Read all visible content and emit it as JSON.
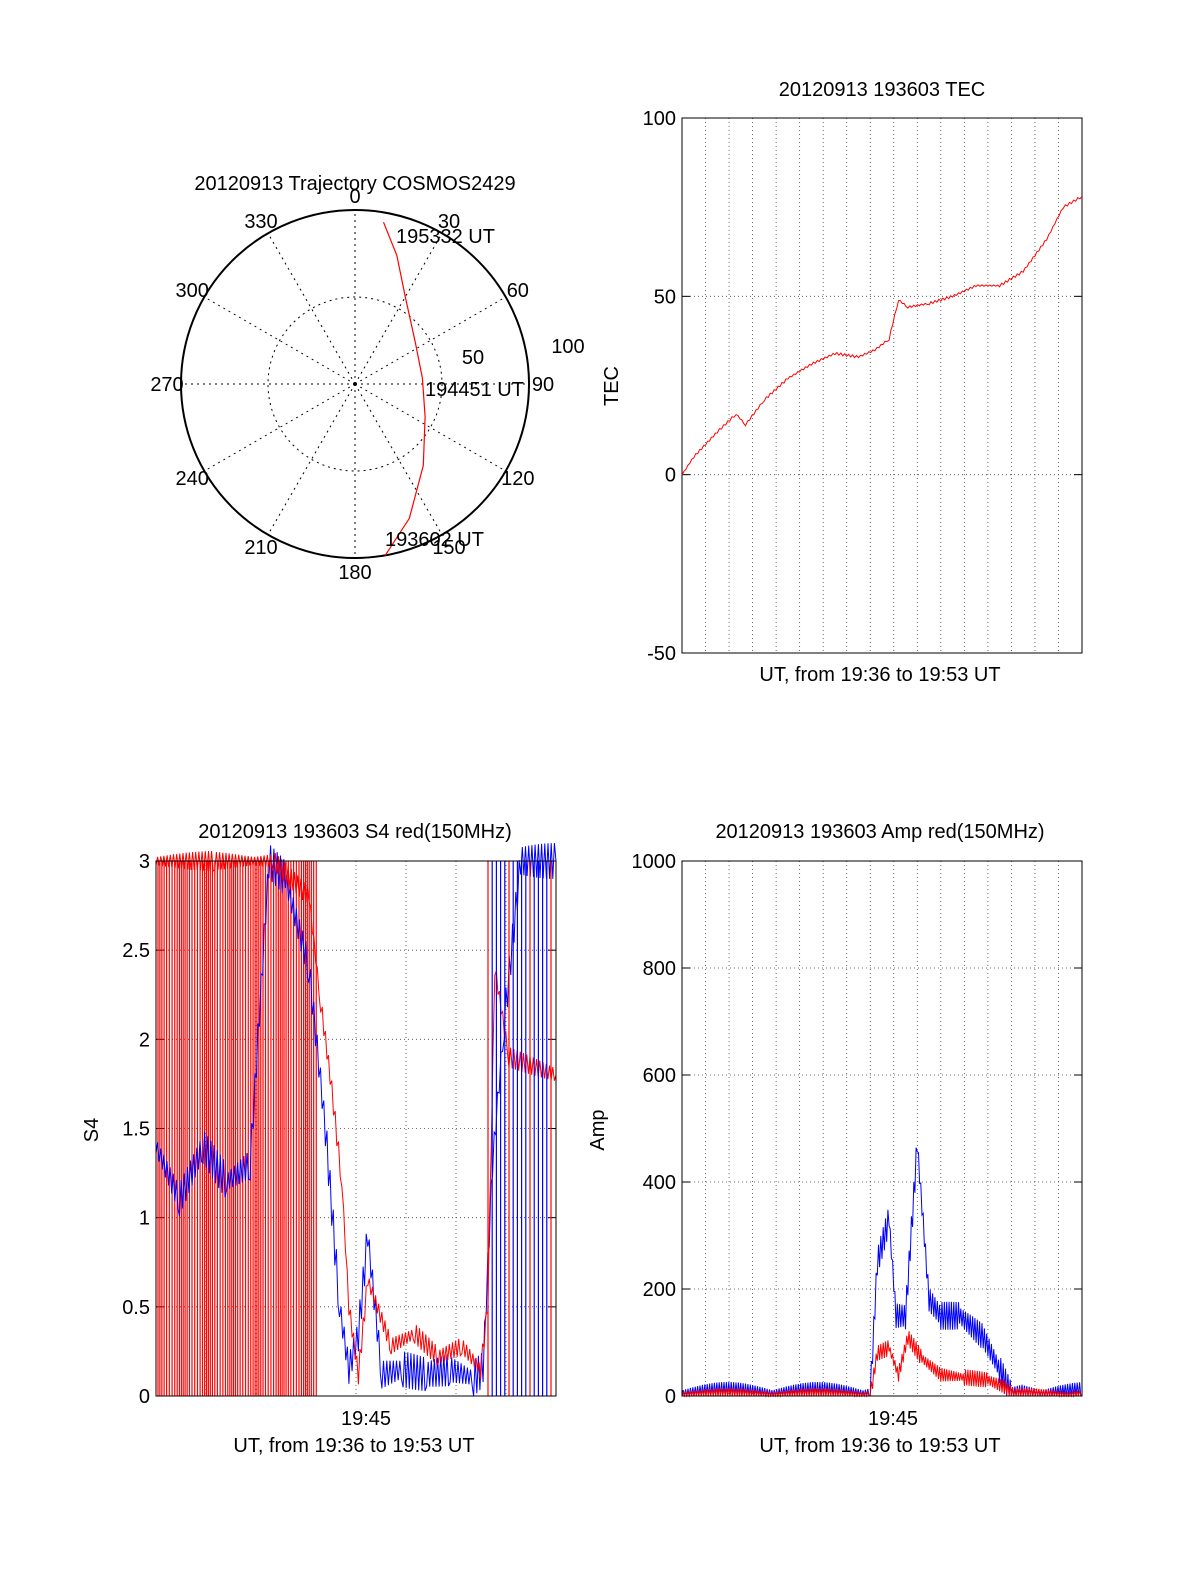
{
  "colors": {
    "red": "#ff0000",
    "blue": "#0000ff",
    "axis": "#000000",
    "grid": "#555555"
  },
  "chart_data": [
    {
      "id": "polar",
      "type": "scatter",
      "title": "20120913 Trajectory COSMOS2429",
      "azimuth_labels": [
        "0",
        "30",
        "60",
        "90",
        "120",
        "150",
        "180",
        "210",
        "240",
        "270",
        "300",
        "330"
      ],
      "radius_labels": [
        "50",
        "100"
      ],
      "annotations": [
        {
          "text": "195332 UT",
          "azimuth": 10,
          "zenith": 85
        },
        {
          "text": "194451 UT",
          "azimuth": 90,
          "zenith": 0
        },
        {
          "text": "193602 UT",
          "azimuth": 170,
          "zenith": 90
        }
      ],
      "trajectory": [
        [
          10,
          85
        ],
        [
          18,
          70
        ],
        [
          30,
          52
        ],
        [
          55,
          38
        ],
        [
          85,
          35
        ],
        [
          115,
          40
        ],
        [
          140,
          55
        ],
        [
          158,
          75
        ],
        [
          170,
          90
        ]
      ],
      "series_color": "#ff0000"
    },
    {
      "id": "tec",
      "type": "line",
      "title": "20120913 193603 TEC",
      "xlabel": "UT, from 19:36 to 19:53 UT",
      "ylabel": "TEC",
      "xlim": [
        0,
        17
      ],
      "ylim": [
        -50,
        100
      ],
      "yticks": [
        "100",
        "50",
        "0",
        "-50"
      ],
      "series": [
        {
          "color": "#ff0000",
          "x": [
            0,
            0.5,
            1.5,
            2.3,
            2.7,
            3.5,
            4.5,
            5.5,
            6.5,
            7.5,
            8.2,
            8.8,
            9.2,
            9.6,
            10.5,
            11.5,
            12.5,
            13.5,
            14.5,
            15.5,
            16.2,
            17
          ],
          "y": [
            0,
            5,
            12,
            17,
            14,
            21,
            27,
            31,
            34,
            33,
            35,
            38,
            49,
            47,
            48,
            50,
            53,
            53,
            57,
            66,
            75,
            78
          ]
        }
      ]
    },
    {
      "id": "s4",
      "type": "line",
      "title": "20120913 193603 S4 red(150MHz)",
      "xlabel": "UT, from 19:36 to 19:53 UT",
      "ylabel": "S4",
      "xlim": [
        0,
        17
      ],
      "ylim": [
        0,
        3
      ],
      "xticks": [
        "19:45"
      ],
      "yticks": [
        "3",
        "2.5",
        "2",
        "1.5",
        "1",
        "0.5",
        "0"
      ],
      "series": [
        {
          "name": "red",
          "color": "#ff0000",
          "x": [
            0,
            2.5,
            5,
            6.5,
            7.0,
            7.4,
            7.9,
            8.2,
            8.6,
            9.0,
            10,
            11,
            12,
            13,
            13.8,
            14.1,
            14.4,
            15,
            17
          ],
          "y": [
            3,
            3,
            3,
            2.8,
            2.2,
            1.8,
            1.2,
            0.5,
            0.12,
            0.65,
            0.28,
            0.35,
            0.22,
            0.28,
            0.15,
            0.5,
            2.4,
            1.9,
            1.8
          ]
        },
        {
          "name": "blue",
          "color": "#0000ff",
          "x": [
            0,
            1,
            2,
            3,
            4,
            4.8,
            5.5,
            6.5,
            7.2,
            7.8,
            8.2,
            8.6,
            9.0,
            9.6,
            10.5,
            11.5,
            12.5,
            13.5,
            13.9,
            14.3,
            14.8,
            15.5,
            17
          ],
          "y": [
            1.4,
            1.1,
            1.4,
            1.2,
            1.3,
            3,
            2.9,
            2.4,
            1.5,
            0.5,
            0.15,
            0.35,
            0.9,
            0.12,
            0.15,
            0.12,
            0.15,
            0.1,
            0.15,
            1.3,
            2.1,
            3,
            3
          ]
        }
      ]
    },
    {
      "id": "amp",
      "type": "line",
      "title": "20120913 193603 Amp red(150MHz)",
      "xlabel": "UT, from 19:36 to 19:53 UT",
      "ylabel": "Amp",
      "xlim": [
        0,
        17
      ],
      "ylim": [
        0,
        1000
      ],
      "xticks": [
        "19:45"
      ],
      "yticks": [
        "1000",
        "800",
        "600",
        "400",
        "200",
        "0"
      ],
      "series": [
        {
          "name": "blue",
          "color": "#0000ff",
          "x": [
            0,
            8.0,
            8.3,
            8.8,
            9.1,
            9.5,
            10.0,
            10.5,
            11.0,
            11.8,
            12.8,
            13.5,
            14.0,
            14.5,
            17
          ],
          "y": [
            0,
            0,
            250,
            330,
            150,
            150,
            470,
            180,
            150,
            150,
            110,
            50,
            0,
            0,
            0
          ]
        },
        {
          "name": "red",
          "color": "#ff0000",
          "x": [
            0,
            8.0,
            8.3,
            8.8,
            9.2,
            9.6,
            10.2,
            11.0,
            12.0,
            13.0,
            13.8,
            14.2,
            17
          ],
          "y": [
            0,
            0,
            80,
            90,
            40,
            110,
            70,
            40,
            35,
            30,
            15,
            0,
            0
          ]
        }
      ]
    }
  ]
}
